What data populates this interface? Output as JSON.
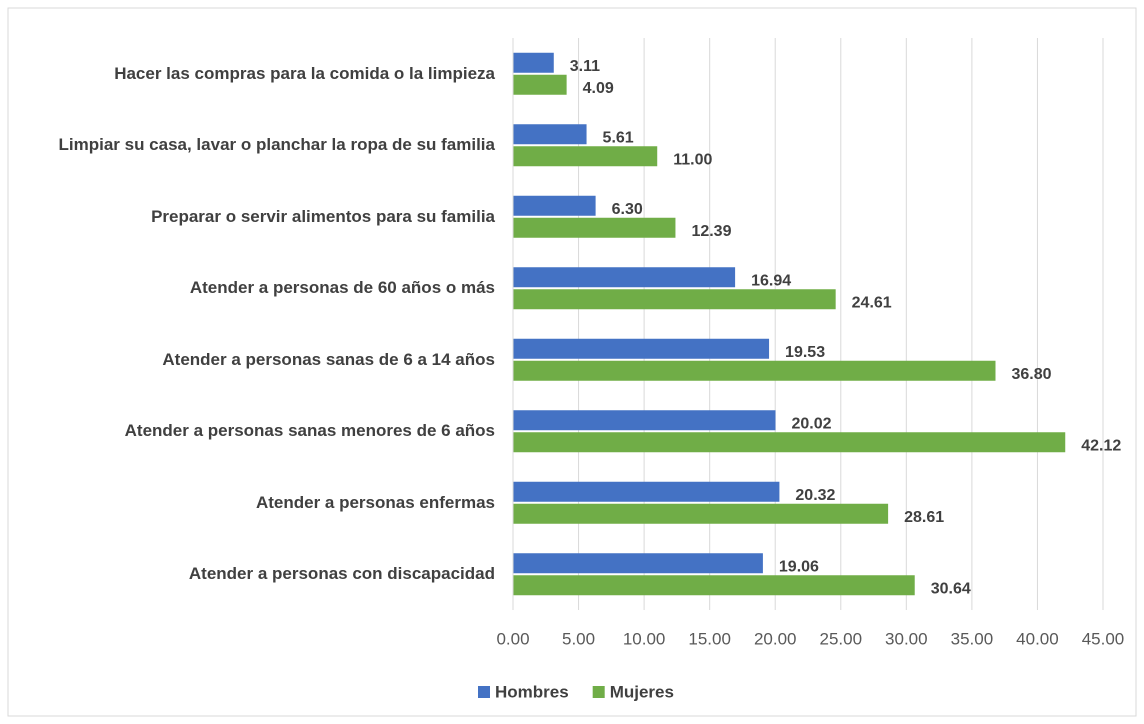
{
  "chart_data": {
    "type": "bar",
    "orientation": "horizontal",
    "categories": [
      "Hacer las compras para la comida o la limpieza",
      "Limpiar su casa, lavar o planchar la ropa de su familia",
      "Preparar o servir alimentos para su familia",
      "Atender a personas de 60 años o más",
      "Atender a personas sanas de 6 a 14 años",
      "Atender a personas sanas menores de 6 años",
      "Atender a personas enfermas",
      "Atender a personas con discapacidad"
    ],
    "series": [
      {
        "name": "Hombres",
        "color": "#4472c4",
        "values": [
          3.11,
          5.61,
          6.3,
          16.94,
          19.53,
          20.02,
          20.32,
          19.06
        ],
        "value_labels": [
          "3.11",
          "5.61",
          "6.30",
          "16.94",
          "19.53",
          "20.02",
          "20.32",
          "19.06"
        ]
      },
      {
        "name": "Mujeres",
        "color": "#70ad47",
        "values": [
          4.09,
          11.0,
          12.39,
          24.61,
          36.8,
          42.12,
          28.61,
          30.64
        ],
        "value_labels": [
          "4.09",
          "11.00",
          "12.39",
          "24.61",
          "36.80",
          "42.12",
          "28.61",
          "30.64"
        ]
      }
    ],
    "xlim": [
      0,
      45
    ],
    "xticks": [
      {
        "value": 0,
        "label": "0.00"
      },
      {
        "value": 5,
        "label": "5.00"
      },
      {
        "value": 10,
        "label": "10.00"
      },
      {
        "value": 15,
        "label": "15.00"
      },
      {
        "value": 20,
        "label": "20.00"
      },
      {
        "value": 25,
        "label": "25.00"
      },
      {
        "value": 30,
        "label": "30.00"
      },
      {
        "value": 35,
        "label": "35.00"
      },
      {
        "value": 40,
        "label": "40.00"
      },
      {
        "value": 45,
        "label": "45.00"
      }
    ],
    "grid": true,
    "legend": "bottom"
  }
}
